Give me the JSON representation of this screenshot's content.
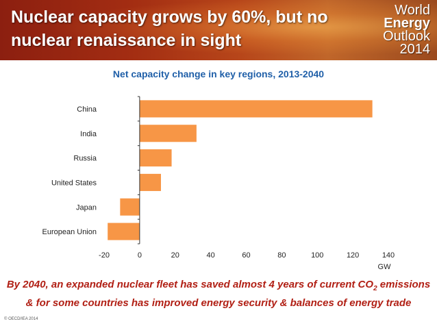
{
  "header": {
    "title": "Nuclear capacity grows by 60%, but no nuclear renaissance in sight",
    "logo": {
      "line1": "World",
      "line2": "Energy",
      "line3": "Outlook",
      "line4": "2014"
    }
  },
  "chart_data": {
    "type": "bar",
    "orientation": "horizontal",
    "title": "Net capacity change in key regions, 2013-2040",
    "xlabel": "GW",
    "categories": [
      "China",
      "India",
      "Russia",
      "United States",
      "Japan",
      "European Union"
    ],
    "values": [
      131,
      32,
      18,
      12,
      -11,
      -18
    ],
    "xlim": [
      -20,
      140
    ],
    "xticks": [
      -20,
      0,
      20,
      40,
      60,
      80,
      100,
      120,
      140
    ],
    "bar_color": "#f79646",
    "grid": false,
    "legend": false
  },
  "caption": {
    "part1": "By 2040, an expanded nuclear fleet has saved almost 4 years of current CO",
    "sub": "2",
    "part2": " emissions",
    "line2": "& for some countries has improved energy security & balances of energy trade"
  },
  "footer": {
    "copyright": "© OECD/IEA 2014"
  }
}
